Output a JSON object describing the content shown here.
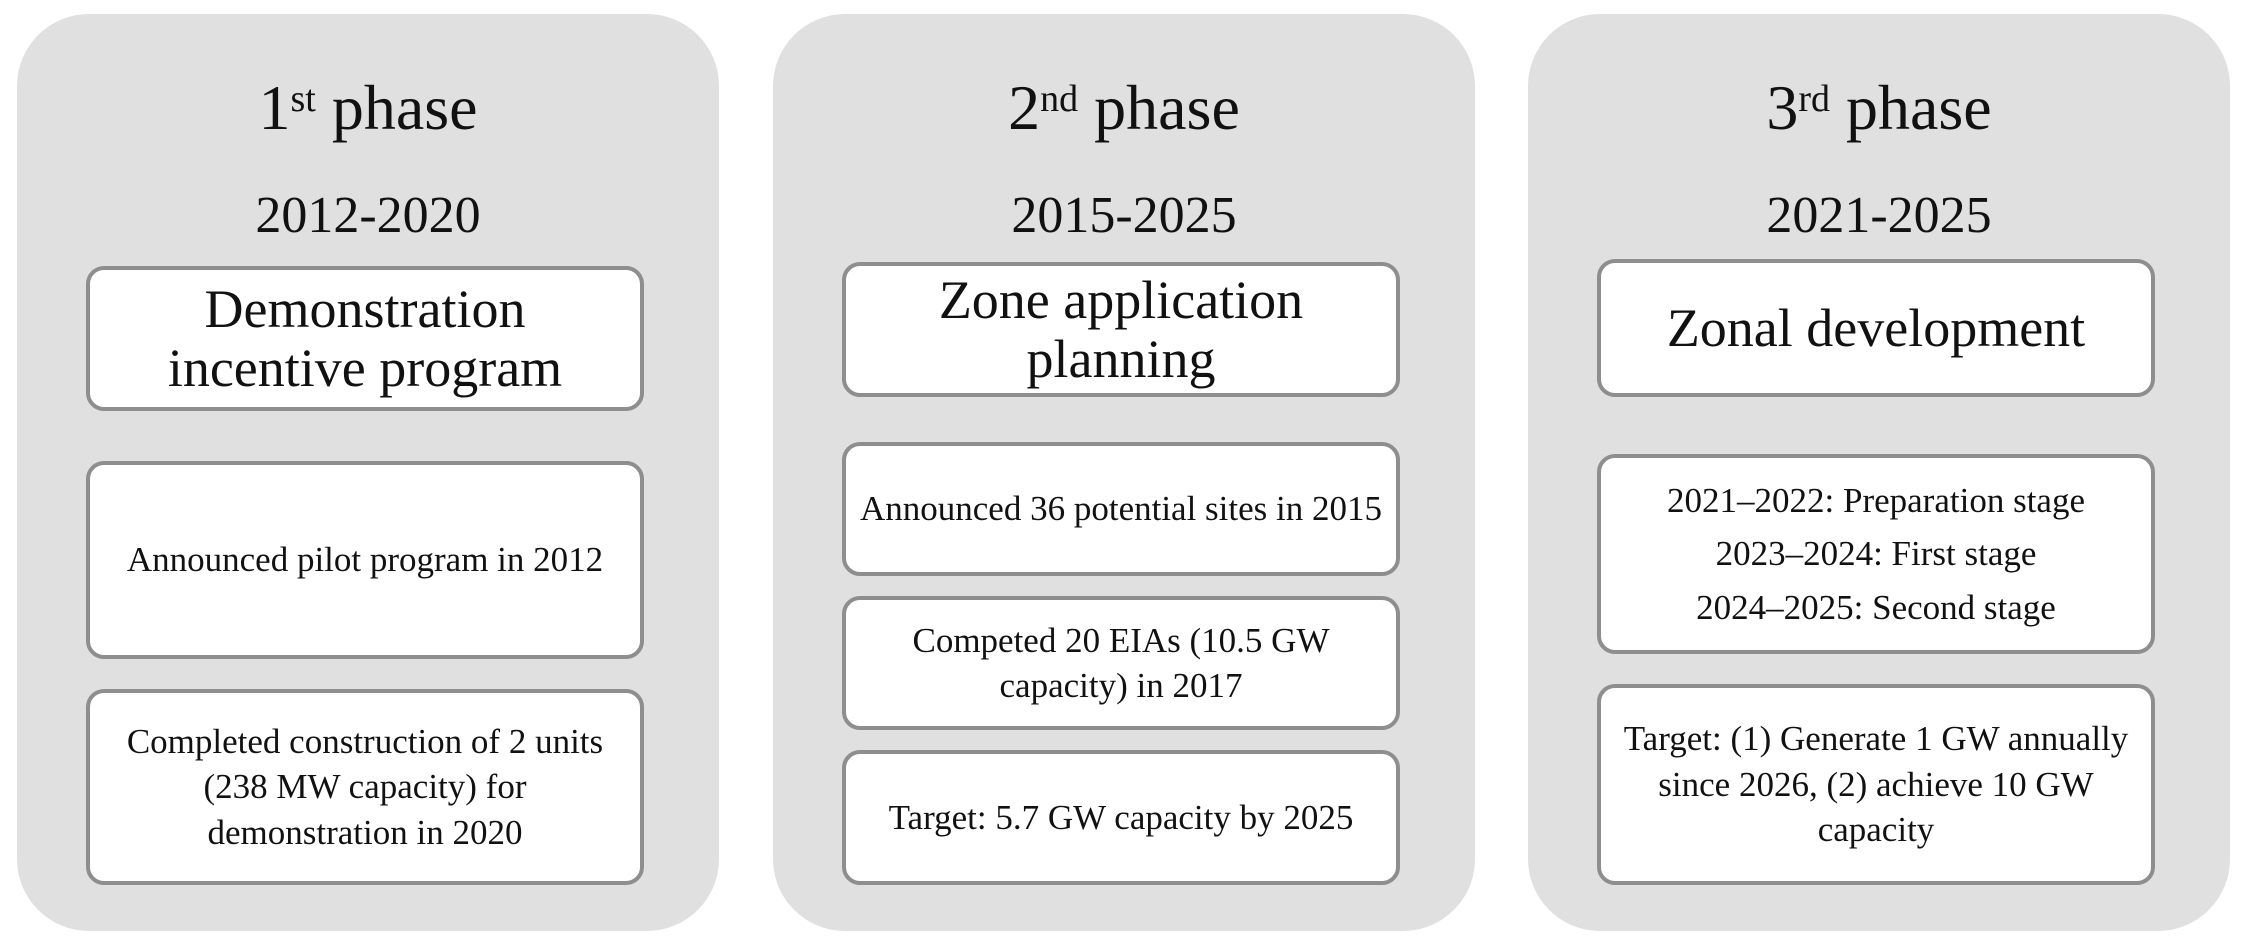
{
  "phases": [
    {
      "ordinal_number": "1",
      "ordinal_suffix": "st",
      "title_word": "phase",
      "years": "2012-2020",
      "heading": "Demonstration incentive program",
      "items": [
        "Announced pilot program in 2012",
        "Completed construction of 2 units (238 MW capacity) for demonstration in 2020"
      ]
    },
    {
      "ordinal_number": "2",
      "ordinal_suffix": "nd",
      "title_word": "phase",
      "years": "2015-2025",
      "heading": "Zone application planning",
      "items": [
        "Announced 36 potential sites in 2015",
        "Competed 20 EIAs (10.5 GW capacity) in 2017",
        "Target: 5.7 GW capacity by 2025"
      ]
    },
    {
      "ordinal_number": "3",
      "ordinal_suffix": "rd",
      "title_word": "phase",
      "years": "2021-2025",
      "heading": "Zonal development",
      "stages": [
        "2021–2022: Preparation stage",
        "2023–2024: First stage",
        "2024–2025: Second stage"
      ],
      "items": [
        "Target: (1) Generate 1 GW annually since 2026, (2) achieve 10 GW capacity"
      ]
    }
  ],
  "colors": {
    "panel": "#e0e0e0",
    "box_border": "#8e8e8e",
    "box_fill": "#ffffff"
  }
}
